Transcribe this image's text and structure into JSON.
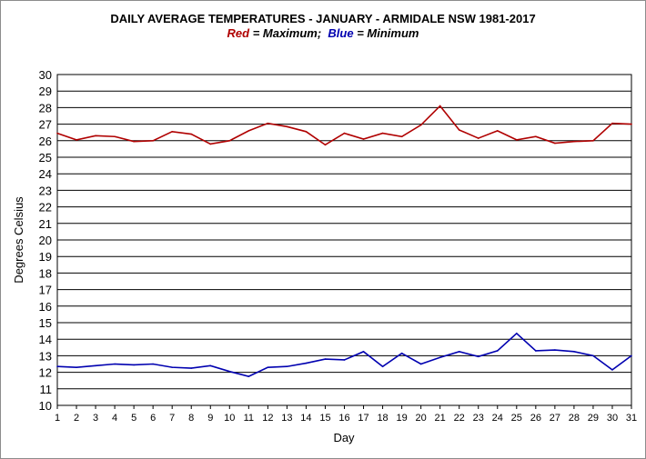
{
  "chart_data": {
    "type": "line",
    "title": "DAILY AVERAGE TEMPERATURES - JANUARY - ARMIDALE NSW  1981-2017",
    "subtitle": {
      "max_word": "Red",
      "max_label": "= Maximum;",
      "min_word": "Blue",
      "min_label": "= Minimum"
    },
    "xlabel": "Day",
    "ylabel": "Degrees Celsius",
    "xlim": [
      1,
      31
    ],
    "ylim": [
      10,
      30
    ],
    "grid": true,
    "x": [
      1,
      2,
      3,
      4,
      5,
      6,
      7,
      8,
      9,
      10,
      11,
      12,
      13,
      14,
      15,
      16,
      17,
      18,
      19,
      20,
      21,
      22,
      23,
      24,
      25,
      26,
      27,
      28,
      29,
      30,
      31
    ],
    "series": [
      {
        "name": "Maximum",
        "color": "#b00000",
        "values": [
          26.45,
          26.05,
          26.3,
          26.25,
          25.95,
          26.0,
          26.55,
          26.4,
          25.8,
          26.0,
          26.6,
          27.05,
          26.85,
          26.55,
          25.75,
          26.45,
          26.1,
          26.45,
          26.25,
          26.95,
          28.1,
          26.65,
          26.15,
          26.6,
          26.05,
          26.25,
          25.85,
          25.95,
          26.0,
          27.05,
          27.0
        ]
      },
      {
        "name": "Minimum",
        "color": "#0000b0",
        "values": [
          12.35,
          12.3,
          12.4,
          12.5,
          12.45,
          12.5,
          12.3,
          12.25,
          12.4,
          12.05,
          11.75,
          12.3,
          12.35,
          12.55,
          12.8,
          12.75,
          13.25,
          12.35,
          13.15,
          12.5,
          12.9,
          13.25,
          12.95,
          13.3,
          14.35,
          13.3,
          13.35,
          13.25,
          13.0,
          12.15,
          13.0
        ]
      }
    ]
  }
}
